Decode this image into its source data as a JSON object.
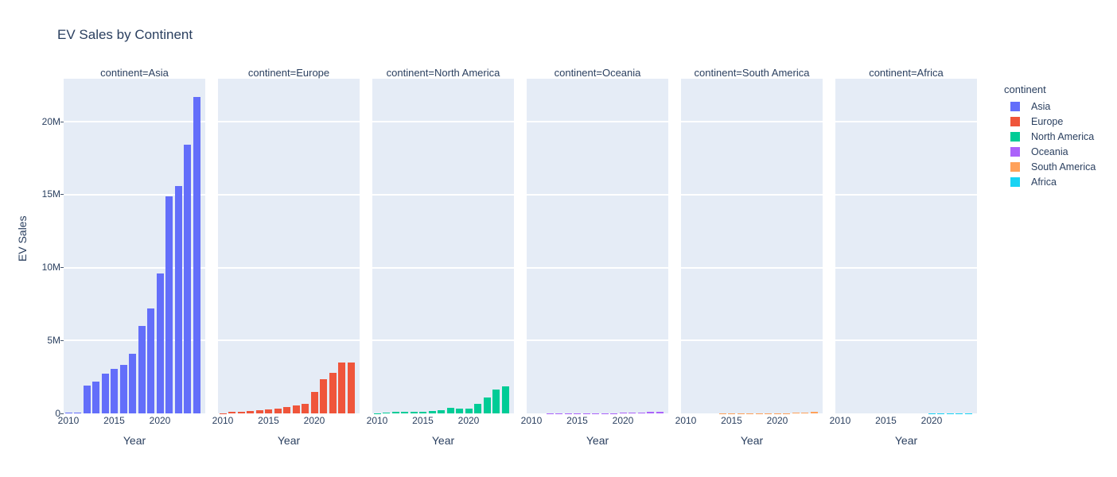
{
  "title": "EV Sales by Continent",
  "colors": {
    "text": "#2a3f5f",
    "plot_background": "#e5ecf6",
    "gridline": "#ffffff",
    "page_background": "#ffffff"
  },
  "legend": {
    "title": "continent",
    "items": [
      {
        "label": "Asia",
        "color": "#636efa"
      },
      {
        "label": "Europe",
        "color": "#ef553b"
      },
      {
        "label": "North America",
        "color": "#00cc96"
      },
      {
        "label": "Oceania",
        "color": "#ab63fa"
      },
      {
        "label": "South America",
        "color": "#ffa15a"
      },
      {
        "label": "Africa",
        "color": "#19d3f3"
      }
    ]
  },
  "chart_data": {
    "type": "bar",
    "title": "EV Sales by Continent",
    "xlabel": "Year",
    "ylabel": "EV Sales",
    "units": "millions of vehicles",
    "x": [
      2010,
      2011,
      2012,
      2013,
      2014,
      2015,
      2016,
      2017,
      2018,
      2019,
      2020,
      2021,
      2022,
      2023,
      2024
    ],
    "facets": [
      {
        "name": "Asia",
        "facet_label": "continent=Asia",
        "color": "#636efa",
        "values": [
          0.03,
          0.07,
          1.9,
          2.2,
          2.7,
          3.05,
          3.3,
          4.1,
          6.0,
          7.2,
          9.6,
          14.9,
          15.6,
          18.4,
          21.7
        ]
      },
      {
        "name": "Europe",
        "facet_label": "continent=Europe",
        "color": "#ef553b",
        "values": [
          0.01,
          0.09,
          0.12,
          0.16,
          0.22,
          0.28,
          0.33,
          0.43,
          0.55,
          0.68,
          1.47,
          2.35,
          2.8,
          3.5,
          3.5
        ]
      },
      {
        "name": "North America",
        "facet_label": "continent=North America",
        "color": "#00cc96",
        "values": [
          0.01,
          0.04,
          0.09,
          0.13,
          0.13,
          0.12,
          0.16,
          0.21,
          0.36,
          0.33,
          0.31,
          0.65,
          1.1,
          1.64,
          1.85
        ]
      },
      {
        "name": "Oceania",
        "facet_label": "continent=Oceania",
        "color": "#ab63fa",
        "values": [
          0.0,
          0.0,
          0.005,
          0.005,
          0.005,
          0.01,
          0.01,
          0.01,
          0.02,
          0.02,
          0.03,
          0.05,
          0.06,
          0.1,
          0.11
        ]
      },
      {
        "name": "South America",
        "facet_label": "continent=South America",
        "color": "#ffa15a",
        "values": [
          0.0,
          0.0,
          0.0,
          0.0,
          0.005,
          0.005,
          0.005,
          0.01,
          0.01,
          0.01,
          0.015,
          0.02,
          0.03,
          0.04,
          0.1
        ]
      },
      {
        "name": "Africa",
        "facet_label": "continent=Africa",
        "color": "#19d3f3",
        "values": [
          0.0,
          0.0,
          0.0,
          0.0,
          0.0,
          0.0,
          0.0,
          0.0,
          0.003,
          0.003,
          0.005,
          0.005,
          0.01,
          0.015,
          0.02
        ]
      }
    ],
    "ylim": [
      0,
      22.95
    ],
    "yticks": {
      "values": [
        0,
        5,
        10,
        15,
        20
      ],
      "labels": [
        "0",
        "5M",
        "10M",
        "15M",
        "20M"
      ]
    },
    "xticks": {
      "values": [
        2010,
        2015,
        2020
      ],
      "labels": [
        "2010",
        "2015",
        "2020"
      ]
    },
    "grid": true,
    "legend_position": "right"
  }
}
